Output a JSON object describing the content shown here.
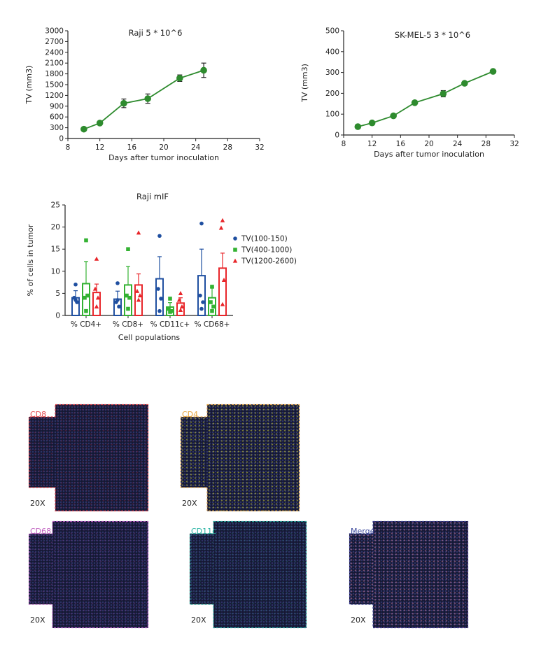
{
  "chart_data": [
    {
      "type": "line",
      "title": "Raji 5 * 10^6",
      "xlabel": "Days after tumor inoculation",
      "ylabel": "TV (mm3)",
      "xlim": [
        8,
        32
      ],
      "ylim": [
        0,
        3000
      ],
      "xticks": [
        "8",
        "12",
        "16",
        "20",
        "24",
        "28",
        "32"
      ],
      "yticks": [
        "0",
        "300",
        "600",
        "900",
        "1200",
        "1500",
        "1800",
        "2100",
        "2400",
        "2700",
        "3000"
      ],
      "color": "#2e8b2e",
      "x": [
        10,
        12,
        15,
        18,
        22,
        25
      ],
      "y": [
        260,
        430,
        980,
        1110,
        1680,
        1900
      ],
      "err": [
        0,
        0,
        120,
        130,
        90,
        200
      ]
    },
    {
      "type": "line",
      "title": "SK-MEL-5 3 * 10^6",
      "xlabel": "Days after tumor inoculation",
      "ylabel": "TV (mm3)",
      "xlim": [
        8,
        32
      ],
      "ylim": [
        0,
        500
      ],
      "xticks": [
        "8",
        "12",
        "16",
        "20",
        "24",
        "28",
        "32"
      ],
      "yticks": [
        "0",
        "100",
        "200",
        "300",
        "400",
        "500"
      ],
      "color": "#2e8b2e",
      "x": [
        10,
        12,
        15,
        18,
        22,
        25,
        29
      ],
      "y": [
        40,
        58,
        92,
        155,
        198,
        248,
        305
      ],
      "err": [
        0,
        0,
        0,
        0,
        15,
        0,
        0
      ]
    },
    {
      "type": "bar",
      "title": "Raji mIF",
      "xlabel": "Cell populations",
      "ylabel": "% of cells in tumor",
      "ylim": [
        0,
        25
      ],
      "yticks": [
        "0",
        "5",
        "10",
        "15",
        "20",
        "25"
      ],
      "categories": [
        "% CD4+",
        "% CD8+",
        "% CD11c+",
        "% CD68+"
      ],
      "legend_position": "right",
      "series": [
        {
          "name": "TV(100-150)",
          "color": "#1f4fa0",
          "marker": "circle",
          "values": [
            4.0,
            3.7,
            8.3,
            9.0
          ],
          "err": [
            1.6,
            1.8,
            5.0,
            6.0
          ],
          "points": [
            [
              7.0,
              4.0,
              3.0,
              3.5
            ],
            [
              7.3,
              3.0,
              2.0,
              3.5
            ],
            [
              18.0,
              6.0,
              3.8,
              1.0
            ],
            [
              20.8,
              4.5,
              3.0,
              1.5
            ]
          ]
        },
        {
          "name": "TV(400-1000)",
          "color": "#34b233",
          "marker": "square",
          "values": [
            7.2,
            6.9,
            1.9,
            4.0
          ],
          "err": [
            5.0,
            4.2,
            1.0,
            2.4
          ],
          "points": [
            [
              17.0,
              4.0,
              4.5,
              1.0
            ],
            [
              15.0,
              4.5,
              4.0,
              1.5
            ],
            [
              3.8,
              1.5,
              1.0,
              0.8
            ],
            [
              6.5,
              3.0,
              2.0,
              1.0
            ]
          ]
        },
        {
          "name": "TV(1200-2600)",
          "color": "#e8262a",
          "marker": "triangle",
          "values": [
            5.2,
            6.9,
            2.8,
            10.7
          ],
          "err": [
            1.9,
            2.5,
            1.2,
            3.4
          ],
          "points": [
            [
              12.8,
              6.0,
              4.0,
              2.0
            ],
            [
              18.7,
              5.5,
              4.5,
              3.5
            ],
            [
              5.0,
              3.5,
              2.0,
              1.2
            ],
            [
              21.5,
              19.8,
              8.0,
              2.5
            ]
          ]
        }
      ]
    }
  ],
  "panels": [
    {
      "label": "CD8",
      "label_color": "#e0474c",
      "frame_color": "#d9383d",
      "zoom": "20X",
      "tint": "rgba(150,40,70,0.35)"
    },
    {
      "label": "CD4",
      "label_color": "#e6a33a",
      "frame_color": "#e0a040",
      "zoom": "20X",
      "tint": "rgba(200,200,60,0.55)"
    },
    {
      "label": "CD68",
      "label_color": "#c061c0",
      "frame_color": "#b45bbd",
      "zoom": "20X",
      "tint": "rgba(140,70,160,0.35)"
    },
    {
      "label": "CD11c",
      "label_color": "#27b3a3",
      "frame_color": "#2aa89a",
      "zoom": "20X",
      "tint": "rgba(60,170,170,0.25)"
    },
    {
      "label": "Merge",
      "label_color": "#3d4a9e",
      "frame_color": "#3f3f8f",
      "zoom": "20X",
      "tint": "rgba(210,130,170,0.55)"
    }
  ]
}
